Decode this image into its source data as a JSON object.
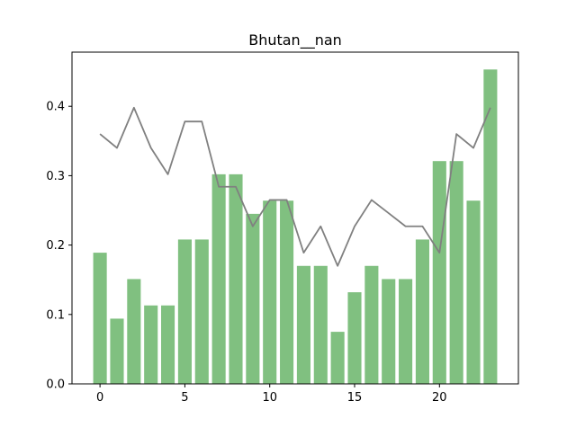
{
  "chart_data": {
    "type": "bar",
    "title": "Bhutan__nan",
    "xlabel": "",
    "ylabel": "",
    "x": [
      0,
      1,
      2,
      3,
      4,
      5,
      6,
      7,
      8,
      9,
      10,
      11,
      12,
      13,
      14,
      15,
      16,
      17,
      18,
      19,
      20,
      21,
      22,
      23
    ],
    "xlim": [
      -1.65,
      24.65
    ],
    "ylim": [
      0,
      0.478
    ],
    "xticks": [
      0,
      5,
      10,
      15,
      20
    ],
    "xtick_labels": [
      "0",
      "5",
      "10",
      "15",
      "20"
    ],
    "yticks": [
      0.0,
      0.1,
      0.2,
      0.3,
      0.4
    ],
    "ytick_labels": [
      "0.0",
      "0.1",
      "0.2",
      "0.3",
      "0.4"
    ],
    "grid": false,
    "series": [
      {
        "kind": "bar",
        "color": "#80c080",
        "values": [
          0.189,
          0.094,
          0.151,
          0.113,
          0.113,
          0.208,
          0.208,
          0.302,
          0.302,
          0.245,
          0.264,
          0.264,
          0.17,
          0.17,
          0.075,
          0.132,
          0.17,
          0.151,
          0.151,
          0.208,
          0.321,
          0.321,
          0.264,
          0.453
        ]
      },
      {
        "kind": "line",
        "color": "#808080",
        "values": [
          0.36,
          0.34,
          0.398,
          0.34,
          0.302,
          0.378,
          0.378,
          0.284,
          0.284,
          0.227,
          0.265,
          0.265,
          0.189,
          0.227,
          0.17,
          0.227,
          0.265,
          0.246,
          0.227,
          0.227,
          0.189,
          0.36,
          0.34,
          0.398
        ]
      }
    ]
  }
}
